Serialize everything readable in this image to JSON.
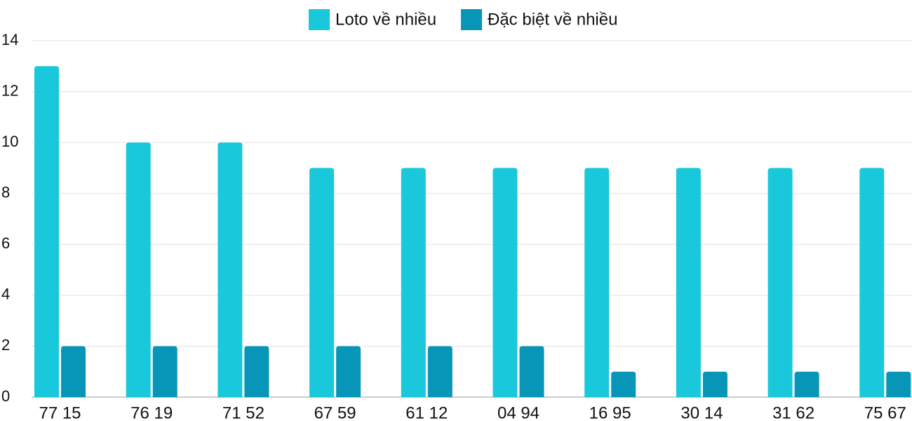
{
  "chart_data": {
    "type": "bar",
    "categories": [
      "77 15",
      "76 19",
      "71 52",
      "67 59",
      "61 12",
      "04 94",
      "16 95",
      "30 14",
      "31 62",
      "75 67"
    ],
    "series": [
      {
        "name": "Loto về nhiều",
        "color": "#1ac8db",
        "values": [
          13,
          10,
          10,
          9,
          9,
          9,
          9,
          9,
          9,
          9
        ]
      },
      {
        "name": "Đặc biệt về nhiều",
        "color": "#0795b8",
        "values": [
          2,
          2,
          2,
          2,
          2,
          2,
          1,
          1,
          1,
          1
        ]
      }
    ],
    "ylim": [
      0,
      14
    ],
    "yticks": [
      0,
      2,
      4,
      6,
      8,
      10,
      12,
      14
    ],
    "grid": true,
    "legend": "top"
  }
}
